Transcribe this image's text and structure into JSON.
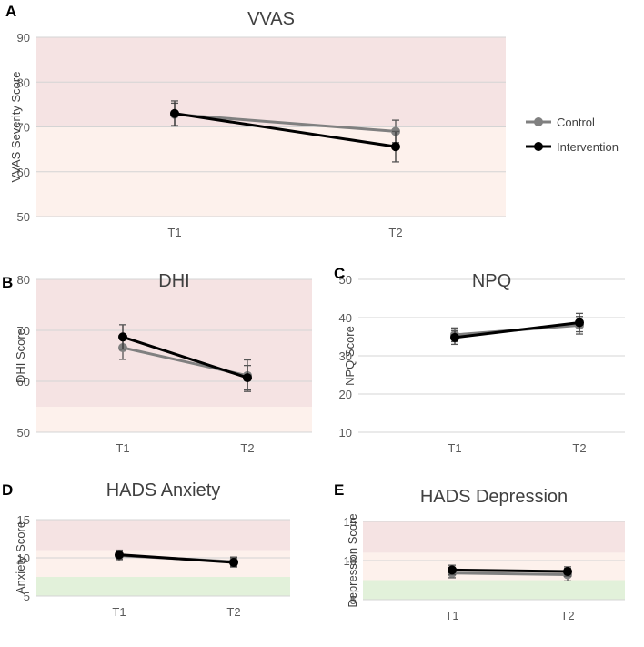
{
  "colors": {
    "control": "#808080",
    "intervention": "#000000",
    "zone_high": "#f5e3e3",
    "zone_mid": "#fdf1ec",
    "zone_low": "#e2f1da",
    "grid": "#d4d4d4",
    "tick_text": "#595959",
    "title_text": "#404040"
  },
  "legend": {
    "control": "Control",
    "intervention": "Intervention"
  },
  "chart_data": [
    {
      "panel": "A",
      "title": "VVAS",
      "type": "line",
      "ylabel": "VVAS Severity Score",
      "categories": [
        "T1",
        "T2"
      ],
      "ylim": [
        50,
        90
      ],
      "yticks": [
        50,
        60,
        70,
        80,
        90
      ],
      "zones": [
        {
          "from": 70,
          "to": 90,
          "level": "high"
        },
        {
          "from": 50,
          "to": 70,
          "level": "mid"
        }
      ],
      "series": [
        {
          "name": "Control",
          "key": "control",
          "values": [
            72.8,
            69.0
          ],
          "err": [
            2.5,
            2.5
          ]
        },
        {
          "name": "Intervention",
          "key": "intervention",
          "values": [
            73.0,
            65.6
          ],
          "err": [
            2.8,
            3.4
          ]
        }
      ]
    },
    {
      "panel": "B",
      "title": "DHI",
      "type": "line",
      "ylabel": "DHI Score",
      "categories": [
        "T1",
        "T2"
      ],
      "ylim": [
        50,
        80
      ],
      "yticks": [
        50,
        60,
        70,
        80
      ],
      "zones": [
        {
          "from": 55,
          "to": 80,
          "level": "high"
        },
        {
          "from": 50,
          "to": 55,
          "level": "mid"
        }
      ],
      "series": [
        {
          "name": "Control",
          "key": "control",
          "values": [
            66.6,
            61.1
          ],
          "err": [
            2.3,
            3.1
          ]
        },
        {
          "name": "Intervention",
          "key": "intervention",
          "values": [
            68.7,
            60.7
          ],
          "err": [
            2.4,
            2.4
          ]
        }
      ]
    },
    {
      "panel": "C",
      "title": "NPQ",
      "type": "line",
      "ylabel": "NPQ Score",
      "categories": [
        "T1",
        "T2"
      ],
      "ylim": [
        10,
        50
      ],
      "yticks": [
        10,
        20,
        30,
        40,
        50
      ],
      "zones": [],
      "series": [
        {
          "name": "Control",
          "key": "control",
          "values": [
            35.5,
            38.0
          ],
          "err": [
            1.8,
            2.3
          ]
        },
        {
          "name": "Intervention",
          "key": "intervention",
          "values": [
            34.8,
            38.7
          ],
          "err": [
            1.8,
            2.4
          ]
        }
      ]
    },
    {
      "panel": "D",
      "title": "HADS Anxiety",
      "type": "line",
      "ylabel": "Anxiety Score",
      "categories": [
        "T1",
        "T2"
      ],
      "ylim": [
        5,
        15
      ],
      "yticks": [
        5,
        10,
        15
      ],
      "zones": [
        {
          "from": 11,
          "to": 15,
          "level": "high"
        },
        {
          "from": 7.5,
          "to": 11,
          "level": "mid"
        },
        {
          "from": 5,
          "to": 7.5,
          "level": "low"
        }
      ],
      "series": [
        {
          "name": "Control",
          "key": "control",
          "values": [
            10.3,
            9.5
          ],
          "err": [
            0.7,
            0.6
          ]
        },
        {
          "name": "Intervention",
          "key": "intervention",
          "values": [
            10.4,
            9.4
          ],
          "err": [
            0.6,
            0.6
          ]
        }
      ]
    },
    {
      "panel": "E",
      "title": "HADS Depression",
      "type": "line",
      "ylabel": "Depression Score",
      "categories": [
        "T1",
        "T2"
      ],
      "ylim": [
        5,
        15
      ],
      "yticks": [
        5,
        10,
        15
      ],
      "zones": [
        {
          "from": 11,
          "to": 15,
          "level": "high"
        },
        {
          "from": 7.5,
          "to": 11,
          "level": "mid"
        },
        {
          "from": 5,
          "to": 7.5,
          "level": "low"
        }
      ],
      "series": [
        {
          "name": "Control",
          "key": "control",
          "values": [
            8.4,
            8.2
          ],
          "err": [
            0.6,
            0.8
          ]
        },
        {
          "name": "Intervention",
          "key": "intervention",
          "values": [
            8.8,
            8.6
          ],
          "err": [
            0.6,
            0.6
          ]
        }
      ]
    }
  ]
}
